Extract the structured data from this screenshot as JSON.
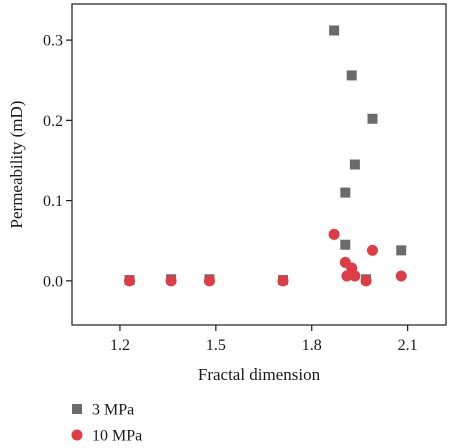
{
  "chart_data": {
    "type": "scatter",
    "xlabel": "Fractal dimension",
    "ylabel": "Permeability (mD)",
    "xlim": [
      1.05,
      2.22
    ],
    "ylim": [
      -0.055,
      0.345
    ],
    "xticks": [
      1.2,
      1.5,
      1.8,
      2.1
    ],
    "xtick_labels": [
      "1.2",
      "1.5",
      "1.8",
      "2.1"
    ],
    "yticks": [
      0.0,
      0.1,
      0.2,
      0.3
    ],
    "ytick_labels": [
      "0.0",
      "0.1",
      "0.2",
      "0.3"
    ],
    "grid": false,
    "legend_position": "bottom-left, below plot",
    "series": [
      {
        "name": "3 MPa",
        "marker": "square",
        "color": "#6b6b6b",
        "points": [
          {
            "x": 1.23,
            "y": 0.001
          },
          {
            "x": 1.36,
            "y": 0.002
          },
          {
            "x": 1.48,
            "y": 0.002
          },
          {
            "x": 1.71,
            "y": 0.001
          },
          {
            "x": 1.87,
            "y": 0.312
          },
          {
            "x": 1.905,
            "y": 0.11
          },
          {
            "x": 1.905,
            "y": 0.045
          },
          {
            "x": 1.925,
            "y": 0.256
          },
          {
            "x": 1.935,
            "y": 0.145
          },
          {
            "x": 1.97,
            "y": 0.002
          },
          {
            "x": 1.99,
            "y": 0.202
          },
          {
            "x": 2.08,
            "y": 0.038
          }
        ]
      },
      {
        "name": "10 MPa",
        "marker": "circle",
        "color": "#e03c46",
        "points": [
          {
            "x": 1.23,
            "y": 0.0
          },
          {
            "x": 1.36,
            "y": 0.0
          },
          {
            "x": 1.48,
            "y": 0.0
          },
          {
            "x": 1.71,
            "y": 0.0
          },
          {
            "x": 1.87,
            "y": 0.058
          },
          {
            "x": 1.905,
            "y": 0.023
          },
          {
            "x": 1.91,
            "y": 0.006
          },
          {
            "x": 1.925,
            "y": 0.016
          },
          {
            "x": 1.935,
            "y": 0.006
          },
          {
            "x": 1.97,
            "y": 0.0
          },
          {
            "x": 1.99,
            "y": 0.038
          },
          {
            "x": 2.08,
            "y": 0.006
          }
        ]
      }
    ]
  }
}
